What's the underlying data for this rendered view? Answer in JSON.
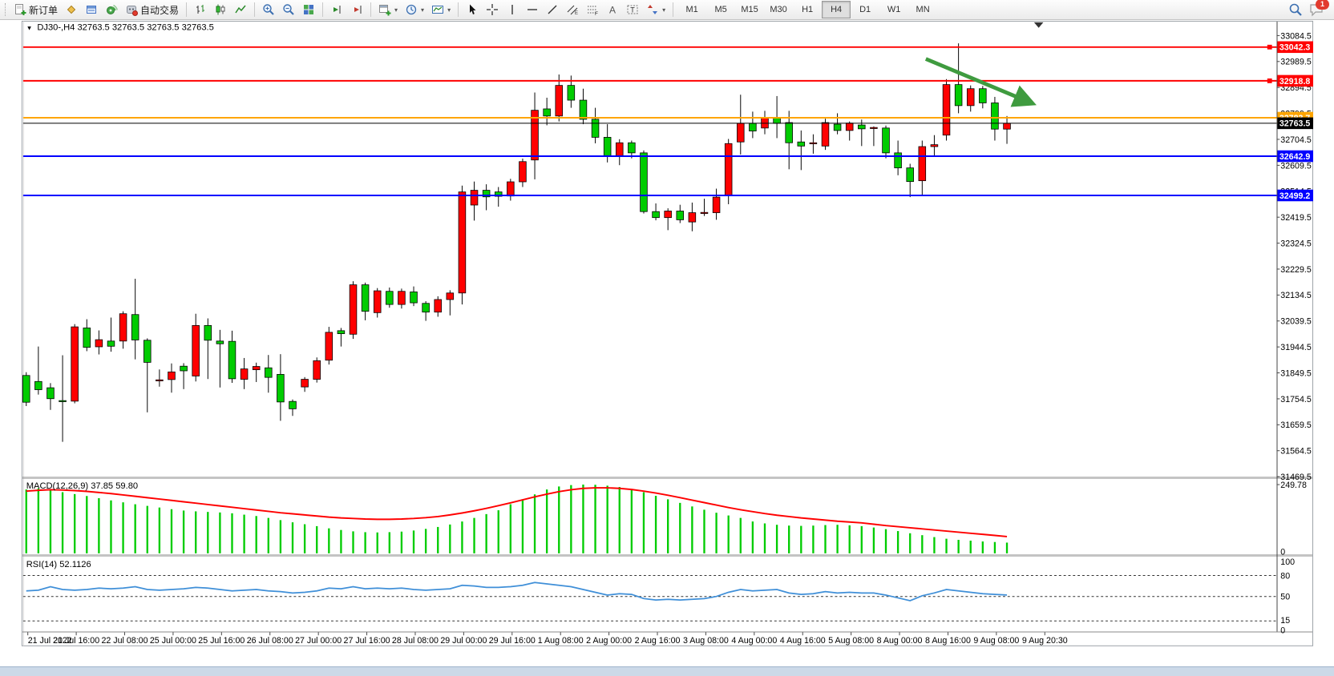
{
  "toolbar": {
    "new_order_label": "新订单",
    "auto_trading_label": "自动交易",
    "timeframes": [
      "M1",
      "M5",
      "M15",
      "M30",
      "H1",
      "H4",
      "D1",
      "W1",
      "MN"
    ],
    "active_timeframe": "H4",
    "notification_count": "1"
  },
  "icons": {
    "new-order-icon": "page+plus",
    "chart-profile-icon": "gold-diamond",
    "market-watch-icon": "blue-window",
    "signal-icon": "green-sonar",
    "auto-trading-icon": "gray-bot-red-dot",
    "bars-chart-icon": "ohlc-bars",
    "candles-chart-icon": "candlestick",
    "line-chart-icon": "zigzag",
    "zoom-in-icon": "magnifier-plus",
    "zoom-out-icon": "magnifier-minus",
    "tile-windows-icon": "four-tiles",
    "shift-begin-icon": "green-play-line",
    "shift-end-icon": "red-play-line",
    "new-chart-icon": "window-plus",
    "period-icon": "clock",
    "template-icon": "picture",
    "cursor-icon": "arrow-pointer",
    "crosshair-icon": "crosshair",
    "vertical-line-icon": "|",
    "horizontal-line-icon": "—",
    "trendline-icon": "/",
    "channel-icon": "double-slash-E",
    "fibonacci-icon": "dotted-F",
    "text-icon": "A",
    "label-icon": "boxed-T",
    "arrows-icon": "shapes",
    "search-icon": "magnifier",
    "chat-icon": "speech-bubble",
    "symbol-collapse-icon": "▼",
    "shift-marker-icon": "▼"
  },
  "chart_data": {
    "type": "candlestick",
    "symbol": "DJ30-",
    "period": "H4",
    "title_text": "DJ30-,H4",
    "ohlc_text": "32763.5 32763.5 32763.5 32763.5",
    "legend_position": "top-left",
    "grid": false,
    "colors": {
      "up": "#ff0000",
      "down": "#00cc00",
      "outline": "#000000",
      "macd_hist": "#00cc00",
      "macd_signal": "#ff0000",
      "rsi": "#3f8fd8",
      "line_red": "#ff0000",
      "line_orange": "#ffa500",
      "line_blue": "#0000ff",
      "price_line": "#000000",
      "arrow": "#3f9b3f"
    },
    "price_axis": {
      "max": 33084.5,
      "min": 31469.5,
      "step": 95,
      "ticks": [
        "33084.5",
        "32989.5",
        "32894.5",
        "32799.5",
        "32704.5",
        "32609.5",
        "32514.5",
        "32419.5",
        "32324.5",
        "32229.5",
        "32134.5",
        "32039.5",
        "31944.5",
        "31849.5",
        "31754.5",
        "31659.5",
        "31564.5",
        "31469.5"
      ]
    },
    "time_labels": [
      "21 Jul 2022",
      "21 Jul 16:00",
      "22 Jul 08:00",
      "25 Jul 00:00",
      "25 Jul 16:00",
      "26 Jul 08:00",
      "27 Jul 00:00",
      "27 Jul 16:00",
      "28 Jul 08:00",
      "29 Jul 00:00",
      "29 Jul 16:00",
      "1 Aug 08:00",
      "2 Aug 00:00",
      "2 Aug 16:00",
      "3 Aug 08:00",
      "4 Aug 00:00",
      "4 Aug 16:00",
      "5 Aug 08:00",
      "8 Aug 00:00",
      "8 Aug 16:00",
      "9 Aug 08:00",
      "9 Aug 20:30"
    ],
    "hlines": [
      {
        "price": 33042.3,
        "label": "33042.3",
        "color": "#ff0000",
        "handle": true
      },
      {
        "price": 32918.8,
        "label": "32918.8",
        "color": "#ff0000",
        "handle": true
      },
      {
        "price": 32783.7,
        "label": "32783.7",
        "color": "#ffa500",
        "handle": false
      },
      {
        "price": 32642.9,
        "label": "32642.9",
        "color": "#0000ff",
        "handle": false
      },
      {
        "price": 32499.2,
        "label": "32499.2",
        "color": "#0000ff",
        "handle": false
      }
    ],
    "current_price": {
      "value": 32763.5,
      "label": "32763.5"
    },
    "arrow_annotation": {
      "from_price": 32999,
      "to_price": 32838,
      "from_bar": 74.3,
      "to_bar": 83.0
    },
    "candles": [
      [
        31840,
        31852,
        31728,
        31742
      ],
      [
        31818,
        31946,
        31770,
        31788
      ],
      [
        31795,
        31812,
        31714,
        31755
      ],
      [
        31748,
        31914,
        31597,
        31744
      ],
      [
        31746,
        32028,
        31738,
        32018
      ],
      [
        32014,
        32046,
        31929,
        31943
      ],
      [
        31945,
        32005,
        31917,
        31971
      ],
      [
        31966,
        32052,
        31927,
        31947
      ],
      [
        31966,
        32075,
        31938,
        32066
      ],
      [
        32063,
        32194,
        31899,
        31970
      ],
      [
        31969,
        31976,
        31705,
        31888
      ],
      [
        31823,
        31862,
        31799,
        31824
      ],
      [
        31825,
        31884,
        31777,
        31853
      ],
      [
        31874,
        31885,
        31790,
        31857
      ],
      [
        31838,
        32066,
        31818,
        32023
      ],
      [
        32023,
        32049,
        31827,
        31969
      ],
      [
        31966,
        32007,
        31796,
        31956
      ],
      [
        31965,
        32004,
        31813,
        31828
      ],
      [
        31826,
        31904,
        31790,
        31864
      ],
      [
        31861,
        31887,
        31816,
        31873
      ],
      [
        31868,
        31915,
        31777,
        31833
      ],
      [
        31844,
        31918,
        31674,
        31743
      ],
      [
        31745,
        31752,
        31692,
        31718
      ],
      [
        31798,
        31834,
        31780,
        31826
      ],
      [
        31826,
        31906,
        31814,
        31894
      ],
      [
        31896,
        32018,
        31880,
        31998
      ],
      [
        32004,
        32014,
        31946,
        31993
      ],
      [
        31991,
        32185,
        31974,
        32172
      ],
      [
        32172,
        32180,
        32042,
        32075
      ],
      [
        32070,
        32160,
        32052,
        32150
      ],
      [
        32148,
        32162,
        32088,
        32100
      ],
      [
        32100,
        32158,
        32085,
        32148
      ],
      [
        32146,
        32166,
        32094,
        32106
      ],
      [
        32104,
        32112,
        32040,
        32072
      ],
      [
        32072,
        32130,
        32055,
        32118
      ],
      [
        32118,
        32152,
        32060,
        32142
      ],
      [
        32142,
        32535,
        32100,
        32512
      ],
      [
        32464,
        32550,
        32407,
        32518
      ],
      [
        32518,
        32540,
        32445,
        32494
      ],
      [
        32512,
        32530,
        32458,
        32496
      ],
      [
        32497,
        32560,
        32480,
        32549
      ],
      [
        32549,
        32634,
        32530,
        32623
      ],
      [
        32629,
        32876,
        32558,
        32811
      ],
      [
        32816,
        32857,
        32756,
        32790
      ],
      [
        32790,
        32942,
        32770,
        32902
      ],
      [
        32902,
        32938,
        32820,
        32848
      ],
      [
        32848,
        32890,
        32760,
        32778
      ],
      [
        32778,
        32820,
        32690,
        32712
      ],
      [
        32712,
        32760,
        32620,
        32645
      ],
      [
        32645,
        32705,
        32610,
        32692
      ],
      [
        32692,
        32700,
        32635,
        32655
      ],
      [
        32655,
        32664,
        32433,
        32440
      ],
      [
        32440,
        32470,
        32408,
        32418
      ],
      [
        32418,
        32452,
        32372,
        32442
      ],
      [
        32442,
        32465,
        32398,
        32410
      ],
      [
        32402,
        32473,
        32368,
        32436
      ],
      [
        32436,
        32487,
        32424,
        32437
      ],
      [
        32436,
        32524,
        32410,
        32493
      ],
      [
        32501,
        32706,
        32467,
        32689
      ],
      [
        32695,
        32868,
        32649,
        32763
      ],
      [
        32763,
        32806,
        32709,
        32735
      ],
      [
        32746,
        32809,
        32723,
        32783
      ],
      [
        32783,
        32863,
        32709,
        32763
      ],
      [
        32766,
        32809,
        32595,
        32692
      ],
      [
        32695,
        32737,
        32592,
        32680
      ],
      [
        32692,
        32723,
        32652,
        32692
      ],
      [
        32680,
        32780,
        32666,
        32766
      ],
      [
        32760,
        32800,
        32723,
        32737
      ],
      [
        32737,
        32770,
        32700,
        32764
      ],
      [
        32757,
        32777,
        32680,
        32743
      ],
      [
        32748,
        32752,
        32680,
        32748
      ],
      [
        32746,
        32755,
        32635,
        32655
      ],
      [
        32655,
        32700,
        32573,
        32600
      ],
      [
        32600,
        32615,
        32493,
        32550
      ],
      [
        32553,
        32700,
        32501,
        32678
      ],
      [
        32678,
        32720,
        32640,
        32685
      ],
      [
        32720,
        32925,
        32700,
        32905
      ],
      [
        32905,
        33056,
        32800,
        32828
      ],
      [
        32828,
        32902,
        32806,
        32890
      ],
      [
        32890,
        32900,
        32818,
        32838
      ],
      [
        32838,
        32860,
        32700,
        32742
      ],
      [
        32742,
        32790,
        32688,
        32763.5
      ]
    ],
    "macd": {
      "label": "MACD(12,26,9)",
      "values_text": "37.85 59.80",
      "scale_max": 249.78,
      "scale_max_label": "249.78",
      "scale_min_label": "0",
      "histogram": [
        232,
        236,
        228,
        222,
        215,
        208,
        200,
        192,
        185,
        178,
        172,
        166,
        160,
        155,
        152,
        150,
        148,
        145,
        140,
        135,
        128,
        120,
        112,
        105,
        98,
        90,
        84,
        79,
        76,
        75,
        76,
        78,
        82,
        88,
        95,
        104,
        115,
        128,
        142,
        156,
        178,
        196,
        214,
        232,
        243,
        248,
        250,
        249,
        246,
        241,
        233,
        222,
        209,
        196,
        183,
        170,
        158,
        147,
        137,
        128,
        115,
        108,
        103,
        100,
        99,
        100,
        102,
        103,
        101,
        98,
        93,
        87,
        80,
        72,
        65,
        58,
        52,
        48,
        45,
        42,
        40,
        37.85
      ],
      "signal": [
        226,
        229,
        231,
        230,
        228,
        225,
        221,
        217,
        212,
        207,
        202,
        197,
        192,
        187,
        182,
        177,
        172,
        167,
        162,
        157,
        152,
        147,
        143,
        139,
        135,
        131,
        128,
        126,
        124,
        123,
        123,
        124,
        126,
        129,
        133,
        139,
        146,
        154,
        163,
        173,
        183,
        194,
        205,
        215,
        224,
        231,
        236,
        238,
        238,
        236,
        232,
        226,
        219,
        211,
        202,
        193,
        184,
        175,
        166,
        158,
        151,
        144,
        138,
        133,
        128,
        124,
        120,
        116,
        113,
        110,
        105,
        100,
        96,
        92,
        88,
        84,
        80,
        76,
        72,
        68,
        64,
        59.8
      ]
    },
    "rsi": {
      "label": "RSI(14)",
      "value_text": "52.1126",
      "levels": [
        80,
        50,
        15
      ],
      "scale_labels": [
        "100",
        "80",
        "50",
        "15",
        "0"
      ],
      "values": [
        58,
        59,
        64,
        60,
        59,
        60,
        62,
        61,
        62,
        64,
        60,
        59,
        60,
        61,
        63,
        62,
        60,
        58,
        59,
        60,
        58,
        57,
        55,
        56,
        58,
        62,
        61,
        64,
        61,
        62,
        61,
        62,
        60,
        59,
        60,
        61,
        66,
        65,
        63,
        63,
        64,
        66,
        70,
        68,
        66,
        64,
        60,
        56,
        52,
        54,
        53,
        47,
        45,
        46,
        45,
        46,
        47,
        50,
        56,
        60,
        58,
        59,
        60,
        55,
        53,
        54,
        57,
        55,
        56,
        55,
        55,
        52,
        48,
        44,
        51,
        55,
        60,
        58,
        56,
        54,
        53,
        52.11
      ]
    }
  }
}
